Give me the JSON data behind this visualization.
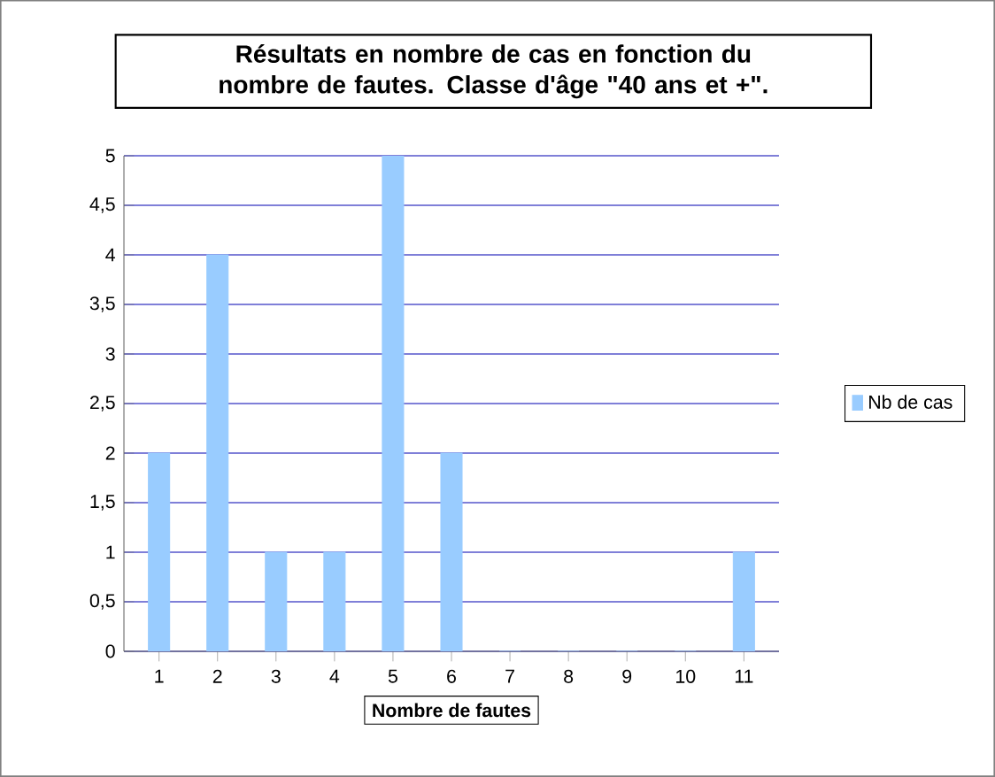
{
  "chart_data": {
    "type": "bar",
    "title": "Résultats en nombre de cas en fonction du nombre de fautes. Classe d'âge \"40 ans et +\".",
    "xlabel": "Nombre de fautes",
    "categories": [
      "1",
      "2",
      "3",
      "4",
      "5",
      "6",
      "7",
      "8",
      "9",
      "10",
      "11"
    ],
    "series": [
      {
        "name": "Nb de cas",
        "color": "#99ccff",
        "values": [
          2,
          4,
          1,
          1,
          5,
          2,
          0,
          0,
          0,
          0,
          1
        ]
      }
    ],
    "ylim": [
      0,
      5
    ],
    "yticks": [
      0,
      {
        "value": 0.5,
        "label": "0,5"
      },
      1,
      {
        "value": 1.5,
        "label": "1,5"
      },
      2,
      {
        "value": 2.5,
        "label": "2,5"
      },
      3,
      {
        "value": 3.5,
        "label": "3,5"
      },
      4,
      {
        "value": 4.5,
        "label": "4,5"
      },
      5
    ],
    "grid": "y",
    "legend": "right"
  }
}
